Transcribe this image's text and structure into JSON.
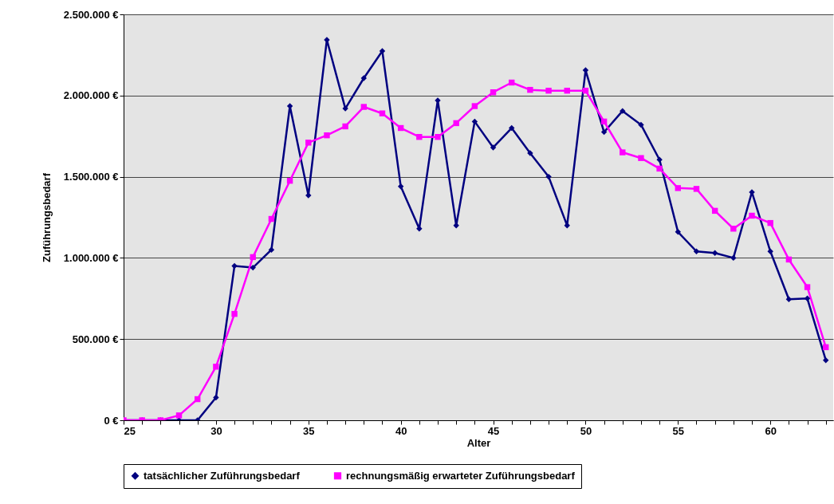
{
  "chart_data": {
    "type": "line",
    "xlabel": "Alter",
    "ylabel": "Zuführungsbedarf",
    "x": [
      25,
      26,
      27,
      28,
      29,
      30,
      31,
      32,
      33,
      34,
      35,
      36,
      37,
      38,
      39,
      40,
      41,
      42,
      43,
      44,
      45,
      46,
      47,
      48,
      49,
      50,
      51,
      52,
      53,
      54,
      55,
      56,
      57,
      58,
      59,
      60,
      61,
      62,
      63
    ],
    "series": [
      {
        "name": "tatsächlicher Zuführungsbedarf",
        "color": "#000080",
        "marker": "diamond",
        "values": [
          0,
          0,
          0,
          0,
          0,
          140000,
          950000,
          940000,
          1050000,
          1935000,
          1385000,
          2343000,
          1920000,
          2107000,
          2274000,
          1440000,
          1180000,
          1970000,
          1200000,
          1840000,
          1680000,
          1800000,
          1645000,
          1500000,
          1200000,
          2156000,
          1775000,
          1905000,
          1820000,
          1605000,
          1160000,
          1040000,
          1030000,
          1000000,
          1405000,
          1040000,
          745000,
          750000,
          370000
        ]
      },
      {
        "name": "rechnungsmäßig erwarteter Zuführungsbedarf",
        "color": "#ff00ff",
        "marker": "square",
        "values": [
          0,
          0,
          0,
          30000,
          130000,
          330000,
          655000,
          1005000,
          1240000,
          1475000,
          1710000,
          1755000,
          1810000,
          1930000,
          1890000,
          1800000,
          1745000,
          1745000,
          1830000,
          1935000,
          2020000,
          2080000,
          2035000,
          2030000,
          2030000,
          2030000,
          1840000,
          1650000,
          1615000,
          1550000,
          1430000,
          1425000,
          1290000,
          1180000,
          1260000,
          1215000,
          990000,
          820000,
          450000
        ]
      }
    ],
    "xlim": [
      25,
      63.4
    ],
    "xticks": [
      25,
      {
        "value": 26,
        "label": null
      },
      {
        "value": 27,
        "label": null
      },
      {
        "value": 28,
        "label": null
      },
      {
        "value": 29,
        "label": null
      },
      30,
      {
        "value": 31,
        "label": null
      },
      {
        "value": 32,
        "label": null
      },
      {
        "value": 33,
        "label": null
      },
      {
        "value": 34,
        "label": null
      },
      35,
      {
        "value": 36,
        "label": null
      },
      {
        "value": 37,
        "label": null
      },
      {
        "value": 38,
        "label": null
      },
      {
        "value": 39,
        "label": null
      },
      40,
      {
        "value": 41,
        "label": null
      },
      {
        "value": 42,
        "label": null
      },
      {
        "value": 43,
        "label": null
      },
      {
        "value": 44,
        "label": null
      },
      45,
      {
        "value": 46,
        "label": null
      },
      {
        "value": 47,
        "label": null
      },
      {
        "value": 48,
        "label": null
      },
      {
        "value": 49,
        "label": null
      },
      50,
      {
        "value": 51,
        "label": null
      },
      {
        "value": 52,
        "label": null
      },
      {
        "value": 53,
        "label": null
      },
      {
        "value": 54,
        "label": null
      },
      55,
      {
        "value": 56,
        "label": null
      },
      {
        "value": 57,
        "label": null
      },
      {
        "value": 58,
        "label": null
      },
      {
        "value": 59,
        "label": null
      },
      60,
      {
        "value": 61,
        "label": null
      },
      {
        "value": 62,
        "label": null
      },
      {
        "value": 63,
        "label": null
      }
    ],
    "ylim": [
      0,
      2500000
    ],
    "yticks": [
      {
        "value": 0,
        "label": "0 €"
      },
      {
        "value": 500000,
        "label": "500.000 €"
      },
      {
        "value": 1000000,
        "label": "1.000.000 €"
      },
      {
        "value": 1500000,
        "label": "1.500.000 €"
      },
      {
        "value": 2000000,
        "label": "2.000.000 €"
      },
      {
        "value": 2500000,
        "label": "2.500.000 €"
      }
    ],
    "grid": "y",
    "legend": "bottom",
    "line_style": "solid"
  }
}
